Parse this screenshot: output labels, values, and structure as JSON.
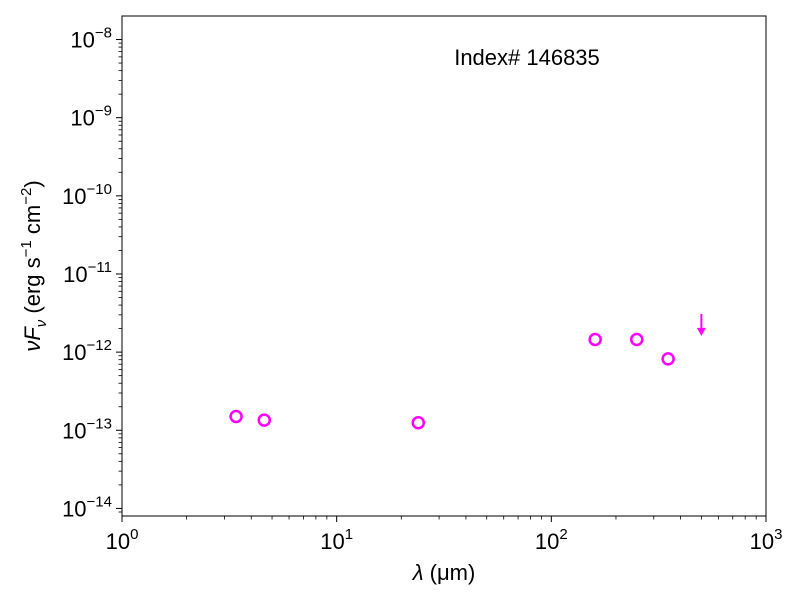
{
  "chart_data": {
    "type": "scatter",
    "title": "",
    "annotation": "Index# 146835",
    "xlabel": {
      "var": "λ",
      "unit": "(μm)"
    },
    "ylabel": {
      "var1": "ν",
      "var2": "F",
      "sub": "ν",
      "unit_pre": "(erg s",
      "exp1": "−1",
      "unit_mid": " cm",
      "exp2": "−2",
      "unit_post": ")"
    },
    "xscale": "log",
    "yscale": "log",
    "xlim": [
      1,
      1000
    ],
    "ylim": [
      8e-15,
      2e-08
    ],
    "x_ticks": [
      {
        "value": 1,
        "mantissa": "10",
        "exponent": "0"
      },
      {
        "value": 10,
        "mantissa": "10",
        "exponent": "1"
      },
      {
        "value": 100,
        "mantissa": "10",
        "exponent": "2"
      },
      {
        "value": 1000,
        "mantissa": "10",
        "exponent": "3"
      }
    ],
    "y_ticks": [
      {
        "value": 1e-14,
        "mantissa": "10",
        "exponent": "−14"
      },
      {
        "value": 1e-13,
        "mantissa": "10",
        "exponent": "−13"
      },
      {
        "value": 1e-12,
        "mantissa": "10",
        "exponent": "−12"
      },
      {
        "value": 1e-11,
        "mantissa": "10",
        "exponent": "−11"
      },
      {
        "value": 1e-10,
        "mantissa": "10",
        "exponent": "−10"
      },
      {
        "value": 1e-09,
        "mantissa": "10",
        "exponent": "−9"
      },
      {
        "value": 1e-08,
        "mantissa": "10",
        "exponent": "−8"
      }
    ],
    "grid": false,
    "color": "#ff00ff",
    "series": [
      {
        "marker": "open-circle",
        "points": [
          {
            "x": 3.4,
            "y": 1.5e-13
          },
          {
            "x": 4.6,
            "y": 1.35e-13
          },
          {
            "x": 24,
            "y": 1.25e-13
          },
          {
            "x": 160,
            "y": 1.45e-12
          },
          {
            "x": 250,
            "y": 1.45e-12
          },
          {
            "x": 350,
            "y": 8.2e-13
          }
        ]
      },
      {
        "marker": "upper-limit-arrow",
        "points": [
          {
            "x": 500,
            "y": 2.3e-12
          }
        ]
      }
    ]
  }
}
